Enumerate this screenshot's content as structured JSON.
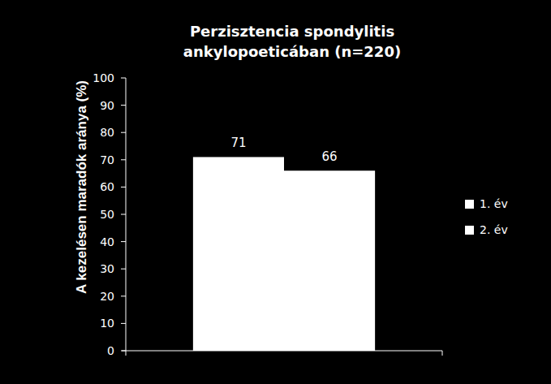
{
  "chart_data": {
    "type": "bar",
    "title": "Perzisztencia spondylitis ankylopoeticában (n=220)",
    "y_label": "A kezelésen maradók aránya (%)",
    "categories": [
      null
    ],
    "series": [
      {
        "name": "1. év",
        "color": "#ffffff",
        "values": [
          71
        ]
      },
      {
        "name": "2. év",
        "color": "#ffffff",
        "values": [
          66
        ]
      }
    ],
    "ylim": [
      0,
      100
    ],
    "yticks": [
      0,
      10,
      20,
      30,
      40,
      50,
      60,
      70,
      80,
      90,
      100
    ],
    "grid": false,
    "legend": "right",
    "data_labels": true
  }
}
